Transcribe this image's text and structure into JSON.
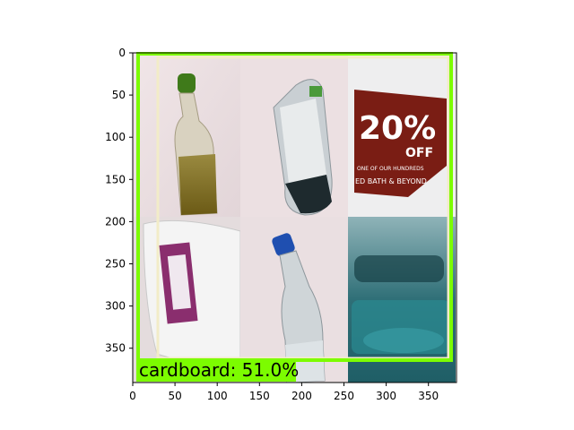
{
  "detection": {
    "label": "cardboard: 51.0%",
    "box_color": "#7cfc00",
    "label_bg": "#7cfc00"
  },
  "axes": {
    "x_ticks": [
      "0",
      "50",
      "100",
      "150",
      "200",
      "250",
      "300",
      "350"
    ],
    "y_ticks": [
      "0",
      "50",
      "100",
      "150",
      "200",
      "250",
      "300",
      "350"
    ]
  },
  "tiles": [
    {
      "name": "tile-bottle-oil",
      "subject": "plastic bottle with green cap"
    },
    {
      "name": "tile-bottle-label",
      "subject": "clear bottle with label"
    },
    {
      "name": "tile-coupon",
      "label_text": "20%",
      "label_sub": "OFF",
      "colors": [
        "#7a1d14",
        "#ffffff"
      ]
    },
    {
      "name": "tile-jug",
      "subject": "white jug with purple label"
    },
    {
      "name": "tile-bottle-blue-cap",
      "subject": "clear bottle with blue cap"
    },
    {
      "name": "tile-teal-container",
      "subject": "teal plastic container"
    }
  ]
}
